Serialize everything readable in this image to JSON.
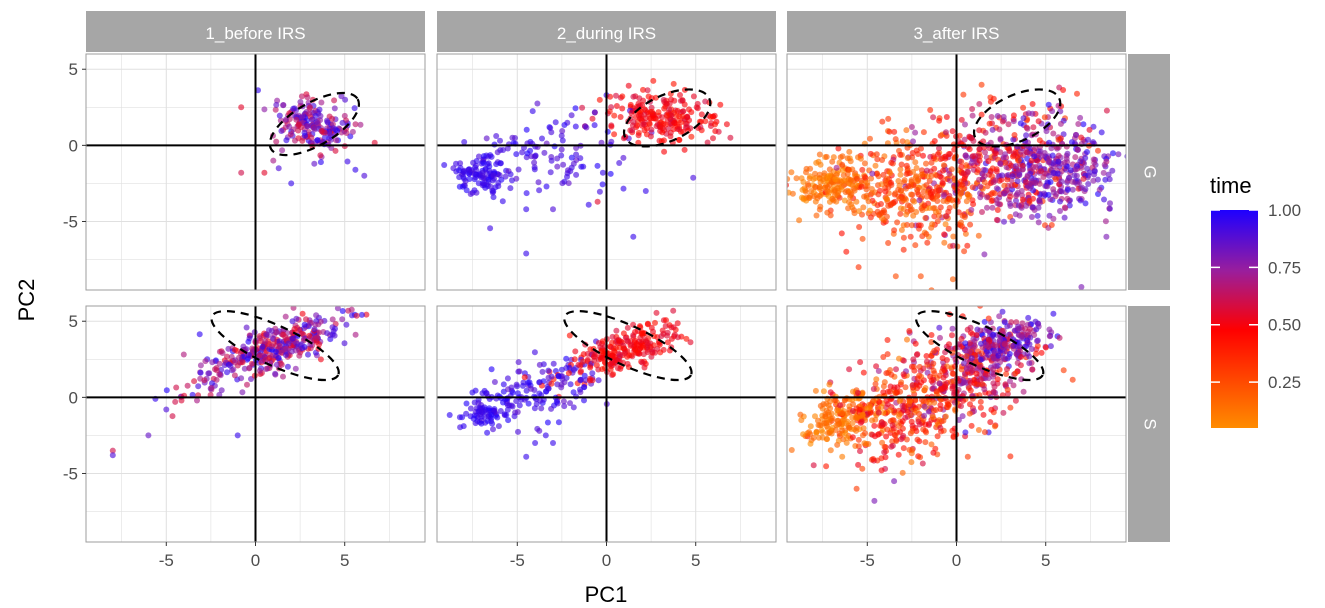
{
  "chart_data": {
    "type": "scatter",
    "title": "",
    "xlabel": "PC1",
    "ylabel": "PC2",
    "xlim": [
      -9.5,
      9.5
    ],
    "ylim": [
      -9.5,
      6.0
    ],
    "x_ticks": [
      -5,
      0,
      5
    ],
    "y_ticks": [
      5,
      0,
      -5
    ],
    "grid": true,
    "reference_lines": {
      "x": 0,
      "y": 0
    },
    "column_facets": [
      "1_before IRS",
      "2_during IRS",
      "3_after IRS"
    ],
    "row_facets": [
      "G",
      "S"
    ],
    "color_scale": {
      "name": "time",
      "range": [
        0.05,
        1.0
      ],
      "breaks": [
        1.0,
        0.75,
        0.5,
        0.25
      ],
      "break_labels": [
        "1.00",
        "0.75",
        "0.50",
        "0.25"
      ],
      "colors": [
        "#ff8c00",
        "#ff0000",
        "#9a1e9c",
        "#1e00ff"
      ],
      "legend_position": "right"
    },
    "panels": [
      {
        "column": "1_before IRS",
        "row": "G",
        "ellipse": {
          "cx": 3.3,
          "cy": 1.4,
          "rx": 2.8,
          "ry": 1.4,
          "angle": -30
        },
        "clusters": [
          {
            "cx": 3.3,
            "cy": 1.4,
            "sx": 1.1,
            "sy": 0.8,
            "rot": -30,
            "n": 200,
            "tmin": 0.55,
            "tmax": 1.0
          }
        ],
        "points": [
          [
            -0.8,
            2.5,
            0.55
          ],
          [
            -0.8,
            -1.8,
            0.6
          ],
          [
            2.0,
            -2.5,
            0.95
          ],
          [
            1.3,
            -1.5,
            0.9
          ],
          [
            6.1,
            -2.0,
            0.9
          ],
          [
            5.6,
            -1.6,
            0.95
          ],
          [
            1.0,
            -1.0,
            0.7
          ],
          [
            0.5,
            -1.8,
            0.55
          ]
        ]
      },
      {
        "column": "2_during IRS",
        "row": "G",
        "ellipse": {
          "cx": 3.4,
          "cy": 1.8,
          "rx": 2.6,
          "ry": 1.5,
          "angle": -25
        },
        "clusters": [
          {
            "cx": -7.0,
            "cy": -1.8,
            "sx": 0.8,
            "sy": 0.7,
            "rot": 0,
            "n": 110,
            "tmin": 0.9,
            "tmax": 1.0
          },
          {
            "cx": -3.0,
            "cy": -0.5,
            "sx": 2.0,
            "sy": 1.3,
            "rot": 10,
            "n": 110,
            "tmin": 0.85,
            "tmax": 1.0
          },
          {
            "cx": 3.0,
            "cy": 1.8,
            "sx": 1.6,
            "sy": 0.8,
            "rot": -10,
            "n": 230,
            "tmin": 0.4,
            "tmax": 0.6
          }
        ],
        "points": [
          [
            -4.5,
            -7.1,
            0.95
          ],
          [
            -4.5,
            -4.2,
            0.95
          ],
          [
            1.5,
            -6.0,
            0.95
          ],
          [
            2.2,
            -3.0,
            0.95
          ],
          [
            -1.0,
            -3.9,
            0.95
          ],
          [
            -3.0,
            -4.2,
            0.9
          ],
          [
            0.0,
            3.3,
            0.95
          ],
          [
            -0.5,
            -3.7,
            0.55
          ]
        ]
      },
      {
        "column": "3_after IRS",
        "row": "G",
        "ellipse": {
          "cx": 3.4,
          "cy": 1.8,
          "rx": 2.6,
          "ry": 1.5,
          "angle": -25
        },
        "clusters": [
          {
            "cx": -7.0,
            "cy": -2.5,
            "sx": 1.0,
            "sy": 0.8,
            "rot": 0,
            "n": 170,
            "tmin": 0.05,
            "tmax": 0.2
          },
          {
            "cx": -2.5,
            "cy": -3.0,
            "sx": 2.2,
            "sy": 1.7,
            "rot": 5,
            "n": 360,
            "tmin": 0.1,
            "tmax": 0.45
          },
          {
            "cx": 2.0,
            "cy": -1.5,
            "sx": 2.4,
            "sy": 2.0,
            "rot": 10,
            "n": 380,
            "tmin": 0.3,
            "tmax": 0.8
          },
          {
            "cx": 5.5,
            "cy": -1.5,
            "sx": 1.7,
            "sy": 1.6,
            "rot": 10,
            "n": 320,
            "tmin": 0.65,
            "tmax": 1.0
          }
        ],
        "points": [
          [
            -0.2,
            -8.8,
            0.2
          ],
          [
            -2.0,
            -8.6,
            0.25
          ],
          [
            7.0,
            -9.3,
            0.8
          ],
          [
            8.4,
            -6.0,
            0.8
          ],
          [
            -3.4,
            -8.6,
            0.25
          ]
        ]
      },
      {
        "column": "1_before IRS",
        "row": "S",
        "ellipse": {
          "cx": 1.1,
          "cy": 3.4,
          "rx": 3.9,
          "ry": 1.3,
          "angle": 25
        },
        "clusters": [
          {
            "cx": 1.1,
            "cy": 3.3,
            "sx": 2.0,
            "sy": 0.7,
            "rot": 25,
            "n": 340,
            "tmin": 0.5,
            "tmax": 1.0
          },
          {
            "cx": -2.5,
            "cy": 1.0,
            "sx": 1.3,
            "sy": 0.6,
            "rot": 30,
            "n": 40,
            "tmin": 0.55,
            "tmax": 1.0
          }
        ],
        "points": [
          [
            -8.0,
            -3.5,
            0.6
          ],
          [
            -8.0,
            -3.8,
            0.9
          ],
          [
            -6.0,
            -2.5,
            0.85
          ],
          [
            -1.0,
            -2.5,
            0.95
          ],
          [
            -5.0,
            -0.8,
            0.9
          ],
          [
            -4.5,
            -0.3,
            0.6
          ],
          [
            -4.0,
            0.1,
            0.55
          ]
        ]
      },
      {
        "column": "2_during IRS",
        "row": "S",
        "ellipse": {
          "cx": 1.2,
          "cy": 3.4,
          "rx": 3.9,
          "ry": 1.3,
          "angle": 25
        },
        "clusters": [
          {
            "cx": -6.7,
            "cy": -0.9,
            "sx": 0.8,
            "sy": 0.6,
            "rot": 20,
            "n": 90,
            "tmin": 0.9,
            "tmax": 1.0
          },
          {
            "cx": -3.2,
            "cy": 0.6,
            "sx": 1.8,
            "sy": 1.0,
            "rot": 30,
            "n": 130,
            "tmin": 0.85,
            "tmax": 1.0
          },
          {
            "cx": 1.0,
            "cy": 3.1,
            "sx": 1.8,
            "sy": 0.6,
            "rot": 25,
            "n": 240,
            "tmin": 0.42,
            "tmax": 0.58
          }
        ],
        "points": [
          [
            -4.5,
            -3.9,
            0.95
          ],
          [
            -4.0,
            -3.0,
            0.95
          ],
          [
            -3.4,
            -2.5,
            0.95
          ],
          [
            -3.0,
            -3.0,
            0.95
          ]
        ]
      },
      {
        "column": "3_after IRS",
        "row": "S",
        "ellipse": {
          "cx": 1.3,
          "cy": 3.4,
          "rx": 3.9,
          "ry": 1.3,
          "angle": 25
        },
        "clusters": [
          {
            "cx": -6.5,
            "cy": -1.5,
            "sx": 1.2,
            "sy": 0.8,
            "rot": 20,
            "n": 170,
            "tmin": 0.05,
            "tmax": 0.2
          },
          {
            "cx": -3.0,
            "cy": -1.0,
            "sx": 2.0,
            "sy": 1.6,
            "rot": 25,
            "n": 330,
            "tmin": 0.1,
            "tmax": 0.6
          },
          {
            "cx": 0.5,
            "cy": 1.5,
            "sx": 2.0,
            "sy": 1.4,
            "rot": 30,
            "n": 330,
            "tmin": 0.3,
            "tmax": 0.8
          },
          {
            "cx": 2.5,
            "cy": 3.5,
            "sx": 1.3,
            "sy": 0.7,
            "rot": 25,
            "n": 230,
            "tmin": 0.6,
            "tmax": 1.0
          }
        ],
        "points": [
          [
            -4.6,
            -6.8,
            0.8
          ],
          [
            -5.6,
            -6.0,
            0.3
          ],
          [
            -3.5,
            -5.5,
            0.8
          ],
          [
            -4.0,
            -4.7,
            0.6
          ],
          [
            0.5,
            -2.3,
            0.95
          ],
          [
            1.8,
            -2.3,
            0.95
          ]
        ]
      }
    ]
  }
}
